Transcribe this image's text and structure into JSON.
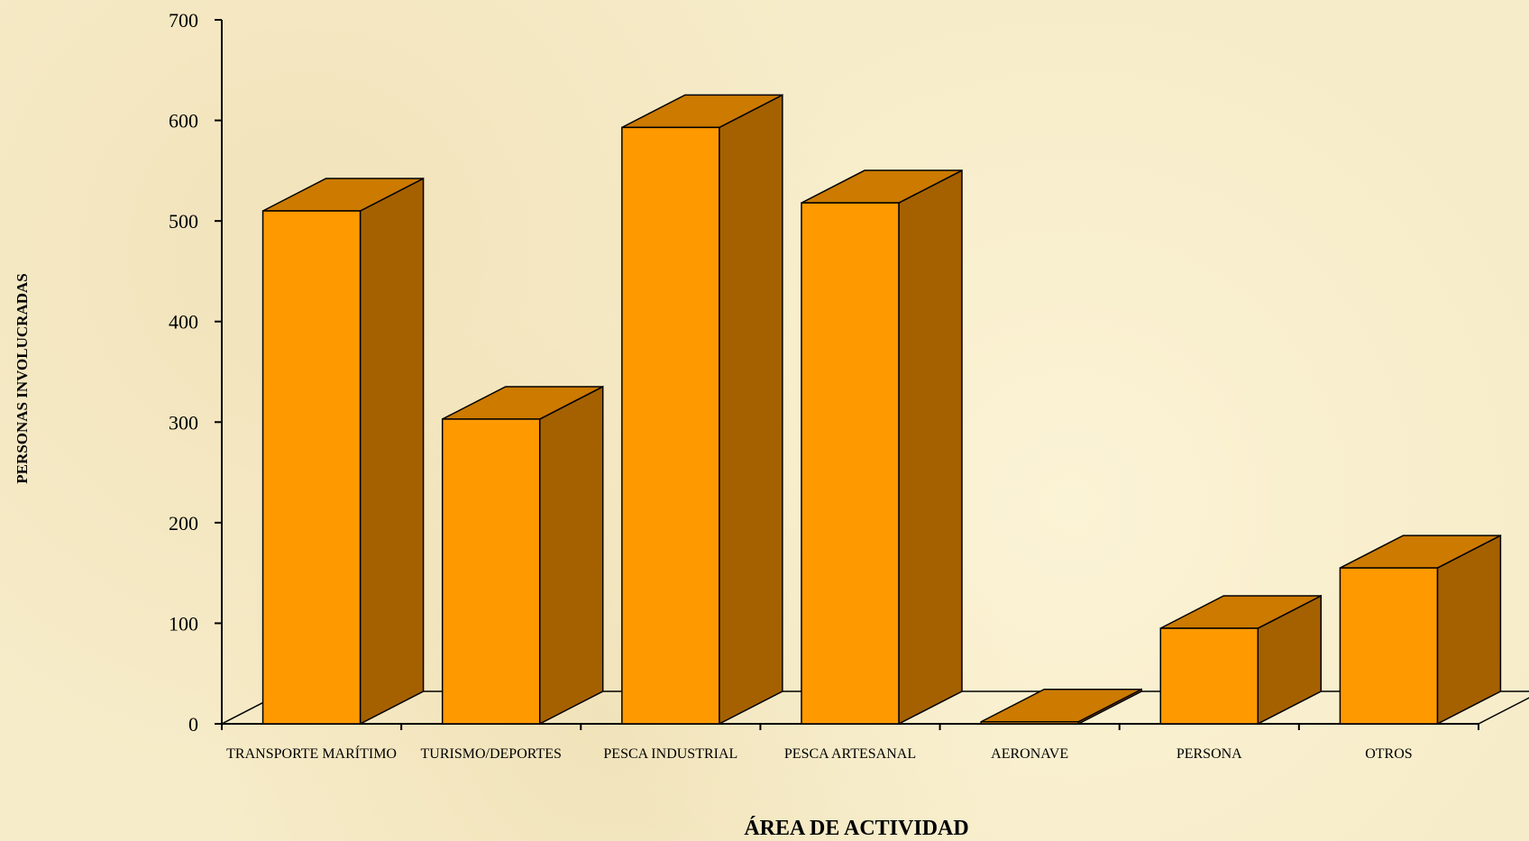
{
  "chart_data": {
    "type": "bar",
    "style": "3d",
    "categories": [
      "TRANSPORTE MARÍTIMO",
      "TURISMO/DEPORTES",
      "PESCA INDUSTRIAL",
      "PESCA ARTESANAL",
      "AERONAVE",
      "PERSONA",
      "OTROS"
    ],
    "values": [
      510,
      303,
      593,
      518,
      2,
      95,
      155
    ],
    "xlabel": "ÁREA DE ACTIVIDAD",
    "ylabel": "PERSONAS INVOLUCRADAS",
    "ylim": [
      0,
      700
    ],
    "yticks": [
      0,
      100,
      200,
      300,
      400,
      500,
      600,
      700
    ],
    "grid": false,
    "colors": {
      "front": "#ff9900",
      "top": "#cc7a00",
      "side": "#a56100",
      "background": "#f7ecc9"
    }
  }
}
